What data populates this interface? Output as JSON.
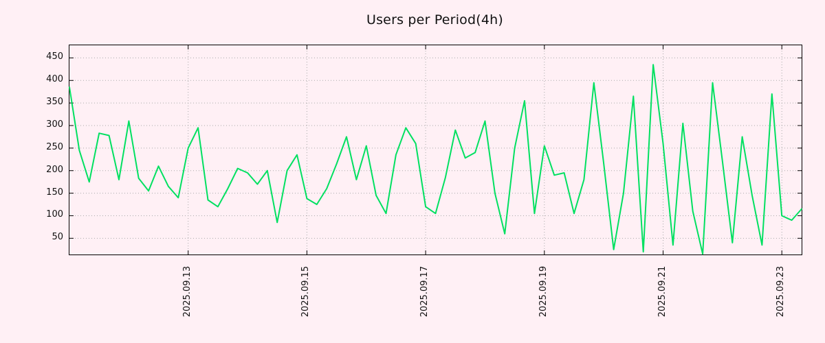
{
  "title": "Users per Period(4h)",
  "colors": {
    "background": "#fff0f5",
    "line": "#00e060",
    "grid": "#a8a8a8",
    "border": "#000000",
    "text": "#111111"
  },
  "chart_data": {
    "type": "line",
    "title": "Users per Period(4h)",
    "xlabel": "",
    "ylabel": "",
    "legend": "none",
    "grid": "dotted",
    "x_start": "2025.09.11 00:00",
    "x_interval_hours": 4,
    "ylim": [
      14,
      478
    ],
    "y_ticks": [
      50,
      100,
      150,
      200,
      250,
      300,
      350,
      400,
      450
    ],
    "x_tick_labels": [
      "2025.09.13",
      "2025.09.15",
      "2025.09.17",
      "2025.09.19",
      "2025.09.21",
      "2025.09.23"
    ],
    "x_tick_indices": [
      12,
      24,
      36,
      48,
      60,
      72
    ],
    "series_name": "Users",
    "values": [
      385,
      245,
      175,
      283,
      278,
      180,
      310,
      183,
      155,
      210,
      165,
      140,
      250,
      295,
      135,
      120,
      160,
      205,
      195,
      170,
      200,
      85,
      200,
      235,
      138,
      125,
      160,
      215,
      275,
      180,
      255,
      145,
      105,
      235,
      295,
      260,
      120,
      105,
      185,
      290,
      228,
      240,
      310,
      150,
      60,
      250,
      355,
      105,
      255,
      190,
      195,
      105,
      180,
      395,
      215,
      25,
      150,
      365,
      20,
      435,
      260,
      35,
      305,
      110,
      15,
      395,
      220,
      40,
      275,
      145,
      35,
      370,
      100,
      90,
      115
    ]
  }
}
